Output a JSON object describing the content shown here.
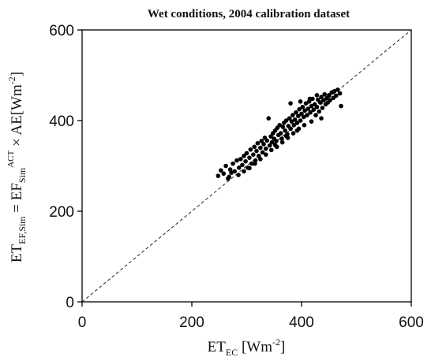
{
  "chart_data": {
    "type": "scatter",
    "title": "Wet conditions, 2004 calibration dataset",
    "xlabel": {
      "main": "ET",
      "sub": "EC",
      "unit_open": " [Wm",
      "unit_exp": "-2",
      "unit_close": "]"
    },
    "ylabel": {
      "p1": "ET",
      "p1_sub": "EF,Sim",
      "p2": " = EF",
      "p2_sub": "Sim",
      "p2_sup": "ACT",
      "p3": " × AE[Wm",
      "p3_exp": "-2",
      "p3_close": "]"
    },
    "xlim": [
      0,
      600
    ],
    "ylim": [
      0,
      600
    ],
    "xticks": [
      "0",
      "200",
      "400",
      "600"
    ],
    "yticks": [
      "0",
      "200",
      "400",
      "600"
    ],
    "grid": false,
    "reference_line": {
      "style": "dashed",
      "from": [
        0,
        0
      ],
      "to": [
        600,
        600
      ]
    },
    "points": [
      [
        248,
        278
      ],
      [
        253,
        290
      ],
      [
        258,
        283
      ],
      [
        262,
        300
      ],
      [
        266,
        272
      ],
      [
        270,
        292
      ],
      [
        272,
        285
      ],
      [
        275,
        305
      ],
      [
        278,
        288
      ],
      [
        282,
        312
      ],
      [
        286,
        296
      ],
      [
        289,
        315
      ],
      [
        292,
        302
      ],
      [
        295,
        322
      ],
      [
        298,
        310
      ],
      [
        300,
        328
      ],
      [
        302,
        296
      ],
      [
        305,
        318
      ],
      [
        307,
        336
      ],
      [
        309,
        305
      ],
      [
        312,
        325
      ],
      [
        314,
        342
      ],
      [
        316,
        312
      ],
      [
        318,
        333
      ],
      [
        320,
        350
      ],
      [
        322,
        322
      ],
      [
        325,
        340
      ],
      [
        327,
        355
      ],
      [
        329,
        330
      ],
      [
        331,
        348
      ],
      [
        333,
        362
      ],
      [
        335,
        338
      ],
      [
        337,
        356
      ],
      [
        340,
        405
      ],
      [
        342,
        345
      ],
      [
        344,
        365
      ],
      [
        346,
        352
      ],
      [
        348,
        372
      ],
      [
        350,
        360
      ],
      [
        352,
        378
      ],
      [
        354,
        355
      ],
      [
        356,
        384
      ],
      [
        358,
        368
      ],
      [
        360,
        390
      ],
      [
        362,
        372
      ],
      [
        364,
        360
      ],
      [
        366,
        386
      ],
      [
        368,
        395
      ],
      [
        370,
        378
      ],
      [
        372,
        400
      ],
      [
        374,
        370
      ],
      [
        376,
        388
      ],
      [
        378,
        405
      ],
      [
        380,
        382
      ],
      [
        382,
        398
      ],
      [
        384,
        412
      ],
      [
        386,
        390
      ],
      [
        388,
        402
      ],
      [
        390,
        418
      ],
      [
        392,
        395
      ],
      [
        394,
        410
      ],
      [
        396,
        425
      ],
      [
        398,
        400
      ],
      [
        400,
        415
      ],
      [
        402,
        430
      ],
      [
        404,
        408
      ],
      [
        406,
        422
      ],
      [
        408,
        438
      ],
      [
        410,
        412
      ],
      [
        412,
        426
      ],
      [
        414,
        442
      ],
      [
        416,
        418
      ],
      [
        418,
        432
      ],
      [
        420,
        448
      ],
      [
        422,
        424
      ],
      [
        424,
        436
      ],
      [
        426,
        412
      ],
      [
        428,
        430
      ],
      [
        430,
        446
      ],
      [
        432,
        420
      ],
      [
        434,
        440
      ],
      [
        436,
        452
      ],
      [
        438,
        428
      ],
      [
        440,
        445
      ],
      [
        442,
        458
      ],
      [
        444,
        436
      ],
      [
        446,
        450
      ],
      [
        448,
        440
      ],
      [
        450,
        456
      ],
      [
        452,
        445
      ],
      [
        455,
        462
      ],
      [
        458,
        450
      ],
      [
        460,
        465
      ],
      [
        463,
        455
      ],
      [
        466,
        468
      ],
      [
        470,
        460
      ],
      [
        472,
        432
      ],
      [
        405,
        390
      ],
      [
        395,
        382
      ],
      [
        385,
        372
      ],
      [
        375,
        362
      ],
      [
        365,
        352
      ],
      [
        355,
        342
      ],
      [
        345,
        335
      ],
      [
        335,
        325
      ],
      [
        325,
        315
      ],
      [
        315,
        305
      ],
      [
        305,
        295
      ],
      [
        295,
        288
      ],
      [
        285,
        280
      ],
      [
        268,
        276
      ],
      [
        380,
        438
      ],
      [
        398,
        442
      ],
      [
        415,
        448
      ],
      [
        428,
        456
      ],
      [
        436,
        405
      ],
      [
        418,
        398
      ],
      [
        392,
        378
      ],
      [
        372,
        366
      ],
      [
        352,
        346
      ]
    ]
  }
}
